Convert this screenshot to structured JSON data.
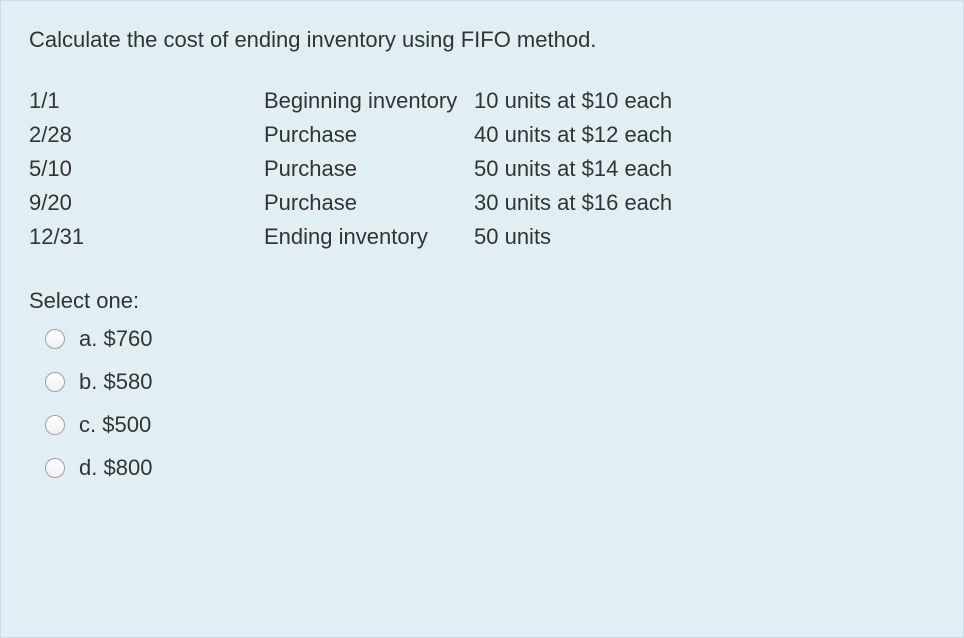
{
  "question": {
    "prompt": "Calculate the cost of ending inventory using FIFO method."
  },
  "inventory_data": {
    "rows": [
      {
        "date": "1/1",
        "description": "Beginning inventory",
        "detail": "10 units at $10 each"
      },
      {
        "date": "2/28",
        "description": "Purchase",
        "detail": "40 units at $12 each"
      },
      {
        "date": "5/10",
        "description": "Purchase",
        "detail": "50 units at $14 each"
      },
      {
        "date": "9/20",
        "description": "Purchase",
        "detail": "30 units at $16 each"
      },
      {
        "date": "12/31",
        "description": "Ending inventory",
        "detail": "50 units"
      }
    ]
  },
  "select_label": "Select one:",
  "options": [
    {
      "letter": "a.",
      "value": "$760"
    },
    {
      "letter": "b.",
      "value": "$580"
    },
    {
      "letter": "c.",
      "value": "$500"
    },
    {
      "letter": "d.",
      "value": "$800"
    }
  ]
}
